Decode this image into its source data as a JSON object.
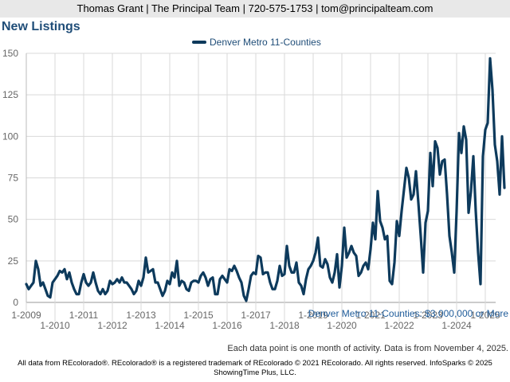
{
  "header": {
    "contact": "Thomas Grant | The Principal Team | 720-575-1753 | tom@principalteam.com"
  },
  "chart_data": {
    "type": "line",
    "title": "New Listings",
    "legend": [
      "Denver Metro 11-Counties"
    ],
    "xlabel": "",
    "ylabel": "",
    "ylim": [
      0,
      150
    ],
    "yticks": [
      0,
      25,
      50,
      75,
      100,
      125,
      150
    ],
    "xticks_upper": [
      "1-2009",
      "1-2011",
      "1-2013",
      "1-2015",
      "1-2017",
      "1-2019",
      "1-2021",
      "1-2023",
      "1-2025"
    ],
    "xticks_lower": [
      "1-2010",
      "1-2012",
      "1-2014",
      "1-2016",
      "1-2018",
      "1-2020",
      "1-2022",
      "1-2024"
    ],
    "grid": true,
    "series_color": "#0d3a5c",
    "start": "2009-01",
    "series": [
      {
        "name": "Denver Metro 11-Counties",
        "values": [
          11,
          8,
          10,
          12,
          25,
          20,
          10,
          12,
          8,
          4,
          3,
          12,
          14,
          16,
          19,
          18,
          20,
          14,
          18,
          12,
          8,
          5,
          5,
          12,
          17,
          12,
          10,
          12,
          18,
          12,
          7,
          5,
          8,
          5,
          7,
          13,
          11,
          12,
          14,
          12,
          15,
          12,
          12,
          10,
          8,
          5,
          7,
          13,
          10,
          15,
          27,
          18,
          19,
          20,
          12,
          12,
          8,
          4,
          7,
          13,
          11,
          18,
          15,
          25,
          10,
          13,
          12,
          8,
          7,
          12,
          13,
          13,
          12,
          16,
          18,
          15,
          10,
          14,
          15,
          5,
          5,
          14,
          16,
          14,
          12,
          20,
          19,
          22,
          19,
          15,
          12,
          4,
          1,
          8,
          16,
          18,
          17,
          28,
          27,
          17,
          18,
          18,
          12,
          8,
          8,
          13,
          22,
          16,
          17,
          34,
          22,
          18,
          18,
          24,
          12,
          10,
          5,
          14,
          20,
          22,
          25,
          30,
          39,
          22,
          21,
          26,
          23,
          15,
          12,
          18,
          29,
          9,
          22,
          45,
          27,
          30,
          34,
          30,
          28,
          16,
          18,
          22,
          24,
          20,
          32,
          48,
          38,
          67,
          49,
          45,
          38,
          40,
          13,
          11,
          24,
          49,
          40,
          55,
          68,
          81,
          75,
          62,
          65,
          79,
          60,
          40,
          18,
          48,
          55,
          90,
          70,
          97,
          93,
          77,
          85,
          86,
          65,
          40,
          30,
          18,
          55,
          102,
          90,
          106,
          98,
          54,
          67,
          88,
          55,
          30,
          11,
          88,
          104,
          108,
          147,
          128,
          95,
          85,
          65,
          100,
          69
        ]
      }
    ],
    "caption": "Denver Metro 11-Counties: $3,000,000 or More"
  },
  "note": "Each data point is one month of activity. Data is from November 4, 2025.",
  "footer": {
    "line1": "All data from REcolorado®. REcolorado® is a registered trademark of REcolorado © 2021 REcolorado. All rights reserved. InfoSparks © 2025",
    "line2": "ShowingTime Plus, LLC."
  }
}
